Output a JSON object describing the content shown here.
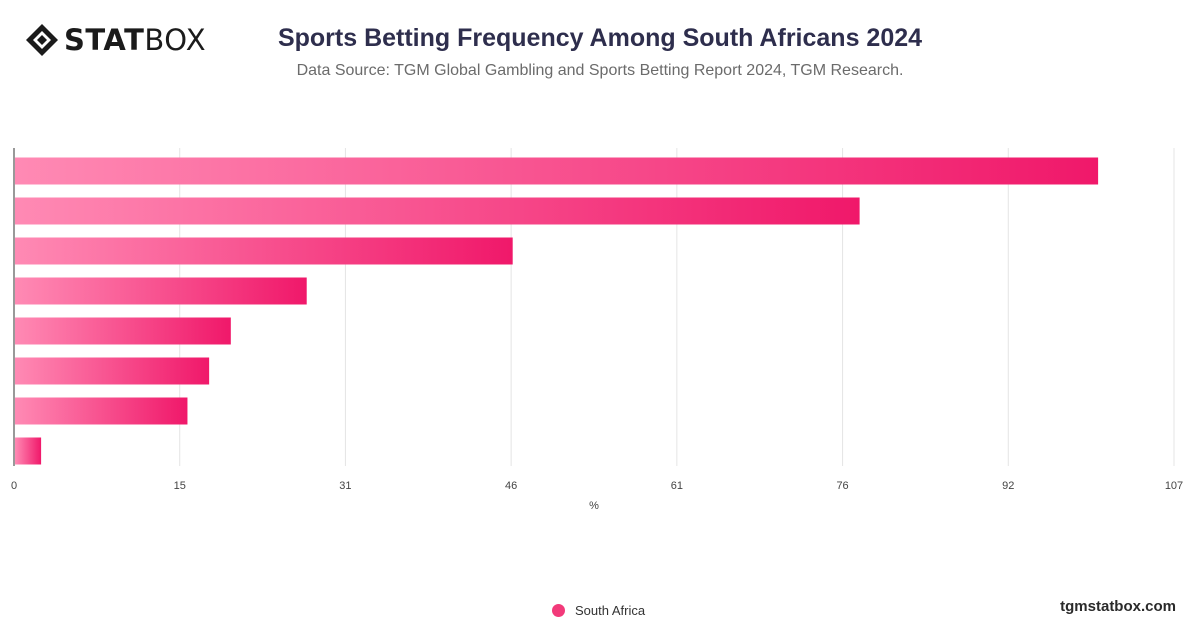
{
  "brand": {
    "logo_bold": "STAT",
    "logo_light": "BOX",
    "site": "tgmstatbox.com"
  },
  "header": {
    "title": "Sports Betting Frequency Among South Africans 2024",
    "subtitle": "Data Source: TGM Global Gambling and Sports Betting Report 2024, TGM Research."
  },
  "colors": {
    "bar_light": "#ff8ab4",
    "bar_dark": "#f0186a",
    "grid": "#e4e4e4",
    "axis": "#333333"
  },
  "chart_data": {
    "type": "bar",
    "orientation": "horizontal",
    "series": [
      {
        "name": "South Africa",
        "values": [
          100,
          78,
          46,
          27,
          20,
          18,
          16,
          2.5
        ]
      }
    ],
    "xlabel": "%",
    "xlim": [
      0,
      107
    ],
    "xticks": [
      "0",
      "15",
      "31",
      "46",
      "61",
      "76",
      "92",
      "107"
    ],
    "grid": true,
    "legend": "bottom-center"
  }
}
